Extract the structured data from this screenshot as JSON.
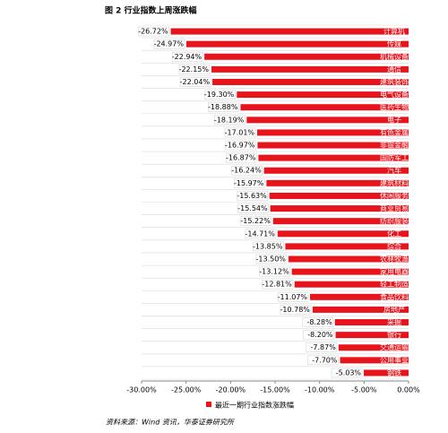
{
  "chart_data": {
    "type": "bar",
    "orientation": "horizontal",
    "title": "图 2  行业指数上周涨跌幅",
    "categories": [
      "计算机",
      "传媒",
      "机械设备",
      "通信",
      "建筑装饰",
      "电气设备",
      "医药生物",
      "电子",
      "有色金属",
      "非银金融",
      "国防军工",
      "汽车",
      "建筑材料",
      "休闲服务",
      "商业贸易",
      "纺织服装",
      "化工",
      "综合",
      "农林牧渔",
      "家用电器",
      "轻工制造",
      "食品饮料",
      "房地产",
      "采掘",
      "银行",
      "交通运输",
      "公用事业",
      "钢铁"
    ],
    "series": [
      {
        "name": "最近一期行业指数涨跌幅",
        "color": "#e8141c",
        "values": [
          -26.72,
          -24.97,
          -22.94,
          -22.15,
          -22.04,
          -19.3,
          -18.88,
          -18.19,
          -17.01,
          -16.97,
          -16.87,
          -16.24,
          -15.97,
          -15.63,
          -15.54,
          -15.22,
          -14.71,
          -13.85,
          -13.5,
          -13.12,
          -12.81,
          -11.07,
          -10.78,
          -8.28,
          -8.2,
          -7.87,
          -7.7,
          -5.03
        ],
        "value_labels": [
          "-26.72%",
          "-24.97%",
          "-22.94%",
          "-22.15%",
          "-22.04%",
          "-19.30%",
          "-18.88%",
          "-18.19%",
          "-17.01%",
          "-16.97%",
          "-16.87%",
          "-16.24%",
          "-15.97%",
          "-15.63%",
          "-15.54%",
          "-15.22%",
          "-14.71%",
          "-13.85%",
          "-13.50%",
          "-13.12%",
          "-12.81%",
          "-11.07%",
          "-10.78%",
          "-8.28%",
          "-8.20%",
          "-7.87%",
          "-7.70%",
          "-5.03%"
        ]
      }
    ],
    "xlim": [
      -30,
      0
    ],
    "xticks": [
      {
        "value": -30,
        "label": "-30.00%"
      },
      {
        "value": -25,
        "label": "-25.00%"
      },
      {
        "value": -20,
        "label": "-20.00%"
      },
      {
        "value": -15,
        "label": "-15.00%"
      },
      {
        "value": -10,
        "label": "-10.00%"
      },
      {
        "value": -5,
        "label": "-5.00%"
      },
      {
        "value": 0,
        "label": "0.00%"
      }
    ],
    "legend": "bottom",
    "source": "资料来源：Wind 资讯，华泰证券研究所"
  }
}
